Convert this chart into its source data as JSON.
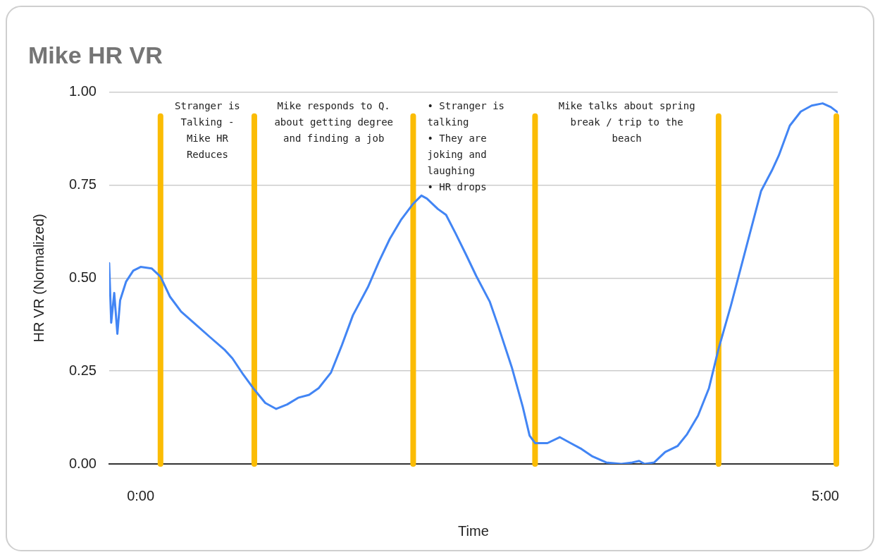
{
  "chart_data": {
    "type": "line",
    "title": "Mike HR VR",
    "xlabel": "Time",
    "ylabel": "HR VR (Normalized)",
    "x": [
      -0.23,
      -0.215,
      -0.193,
      -0.17,
      -0.15,
      -0.107,
      -0.054,
      0,
      0.08,
      0.145,
      0.214,
      0.295,
      0.4,
      0.51,
      0.616,
      0.67,
      0.75,
      0.83,
      0.91,
      0.99,
      1.07,
      1.15,
      1.23,
      1.3,
      1.39,
      1.47,
      1.55,
      1.66,
      1.74,
      1.82,
      1.9,
      1.99,
      2.05,
      2.09,
      2.17,
      2.23,
      2.3,
      2.38,
      2.45,
      2.55,
      2.61,
      2.71,
      2.79,
      2.84,
      2.88,
      2.97,
      3.06,
      3.14,
      3.22,
      3.3,
      3.4,
      3.51,
      3.59,
      3.64,
      3.68,
      3.75,
      3.83,
      3.92,
      3.99,
      4.07,
      4.15,
      4.22,
      4.31,
      4.42,
      4.53,
      4.61,
      4.66,
      4.74,
      4.82,
      4.9,
      4.98,
      5.04,
      5.09
    ],
    "series": [
      {
        "color": "#4285f4",
        "values": [
          0.54,
          0.38,
          0.46,
          0.35,
          0.44,
          0.49,
          0.52,
          0.53,
          0.526,
          0.504,
          0.45,
          0.41,
          0.376,
          0.34,
          0.306,
          0.284,
          0.24,
          0.2,
          0.164,
          0.148,
          0.16,
          0.178,
          0.186,
          0.204,
          0.246,
          0.32,
          0.4,
          0.476,
          0.544,
          0.606,
          0.656,
          0.7,
          0.722,
          0.714,
          0.686,
          0.67,
          0.62,
          0.56,
          0.506,
          0.436,
          0.372,
          0.26,
          0.154,
          0.076,
          0.056,
          0.056,
          0.072,
          0.056,
          0.04,
          0.02,
          0.004,
          0,
          0.004,
          0.008,
          0,
          0.004,
          0.032,
          0.048,
          0.08,
          0.13,
          0.204,
          0.31,
          0.426,
          0.58,
          0.734,
          0.79,
          0.83,
          0.91,
          0.948,
          0.964,
          0.97,
          0.96,
          0.946
        ]
      }
    ],
    "xlim": [
      -0.23,
      5.09
    ],
    "xticks": [
      {
        "value": 0,
        "label": "0:00"
      },
      {
        "value": 5,
        "label": "5:00"
      }
    ],
    "ylim": [
      0,
      1
    ],
    "yticks": [
      {
        "value": 0,
        "label": "0.00"
      },
      {
        "value": 0.25,
        "label": "0.25"
      },
      {
        "value": 0.5,
        "label": "0.50"
      },
      {
        "value": 0.75,
        "label": "0.75"
      },
      {
        "value": 1,
        "label": "1.00"
      }
    ],
    "grid": "y",
    "legend": false,
    "marker": "none",
    "line_style": "solid",
    "ref_lines": [
      {
        "axis": "x",
        "value": 0.145,
        "color": "#fbbc04"
      },
      {
        "axis": "x",
        "value": 0.83,
        "color": "#fbbc04"
      },
      {
        "axis": "x",
        "value": 1.99,
        "color": "#fbbc04"
      },
      {
        "axis": "x",
        "value": 2.88,
        "color": "#fbbc04"
      },
      {
        "axis": "x",
        "value": 4.22,
        "color": "#fbbc04"
      },
      {
        "axis": "x",
        "value": 5.08,
        "color": "#fbbc04"
      }
    ],
    "annotations": [
      "Stranger is Talking - Mike HR Reduces",
      "Mike responds to Q. about getting degree and finding a job",
      "• Stranger is talking\n• They are joking and laughing\n• HR drops",
      "Mike talks about spring break / trip to the beach"
    ]
  }
}
